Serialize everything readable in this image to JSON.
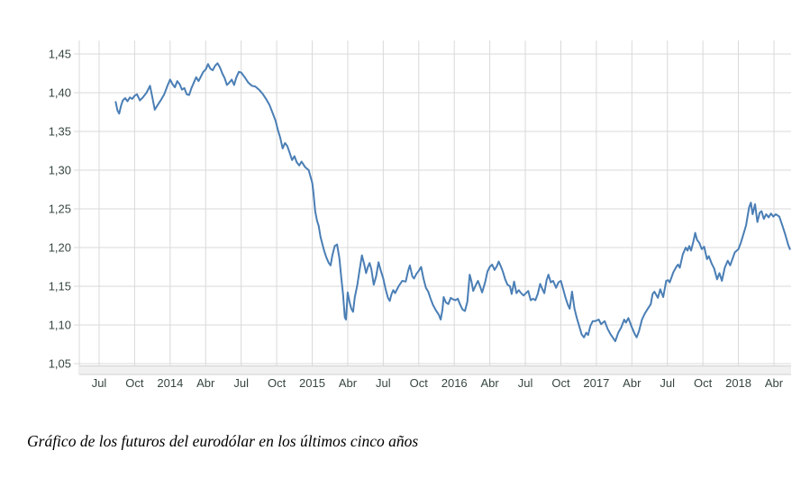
{
  "caption": "Gráfico de los futuros del eurodólar en los últimos cinco años",
  "chart_data": {
    "type": "line",
    "title": "",
    "series_name": "futuros-eurodolar",
    "legend": "none",
    "grid": "on",
    "colors": {
      "line": "#4a7eb5",
      "grid": "#d9d9d9",
      "axis_band_fill": "#f0f0f0",
      "axis_band_border": "#d2d2d2",
      "tick_label": "#36463e",
      "background": "#ffffff"
    },
    "ylim": [
      1.05,
      1.45
    ],
    "y_ticks": [
      {
        "value": 1.45,
        "label": "1,45"
      },
      {
        "value": 1.4,
        "label": "1,40"
      },
      {
        "value": 1.35,
        "label": "1,35"
      },
      {
        "value": 1.3,
        "label": "1,30"
      },
      {
        "value": 1.25,
        "label": "1,25"
      },
      {
        "value": 1.2,
        "label": "1,20"
      },
      {
        "value": 1.15,
        "label": "1,15"
      },
      {
        "value": 1.1,
        "label": "1,10"
      },
      {
        "value": 1.05,
        "label": "1,05"
      }
    ],
    "x_ticks": [
      {
        "t": 0,
        "label": "Jul"
      },
      {
        "t": 3,
        "label": "Oct"
      },
      {
        "t": 6,
        "label": "2014"
      },
      {
        "t": 9,
        "label": "Abr"
      },
      {
        "t": 12,
        "label": "Jul"
      },
      {
        "t": 15,
        "label": "Oct"
      },
      {
        "t": 18,
        "label": "2015"
      },
      {
        "t": 21,
        "label": "Abr"
      },
      {
        "t": 24,
        "label": "Jul"
      },
      {
        "t": 27,
        "label": "Oct"
      },
      {
        "t": 30,
        "label": "2016"
      },
      {
        "t": 33,
        "label": "Abr"
      },
      {
        "t": 36,
        "label": "Jul"
      },
      {
        "t": 39,
        "label": "Oct"
      },
      {
        "t": 42,
        "label": "2017"
      },
      {
        "t": 45,
        "label": "Abr"
      },
      {
        "t": 48,
        "label": "Jul"
      },
      {
        "t": 51,
        "label": "Oct"
      },
      {
        "t": 54,
        "label": "2018"
      },
      {
        "t": 57,
        "label": "Abr"
      }
    ],
    "x_unit": "months since Jul 2013",
    "points": [
      [
        1.4,
        1.388
      ],
      [
        1.55,
        1.377
      ],
      [
        1.7,
        1.373
      ],
      [
        1.85,
        1.383
      ],
      [
        2.0,
        1.39
      ],
      [
        2.2,
        1.393
      ],
      [
        2.4,
        1.389
      ],
      [
        2.6,
        1.394
      ],
      [
        2.8,
        1.392
      ],
      [
        3.0,
        1.396
      ],
      [
        3.2,
        1.398
      ],
      [
        3.45,
        1.39
      ],
      [
        3.7,
        1.394
      ],
      [
        4.0,
        1.4
      ],
      [
        4.3,
        1.409
      ],
      [
        4.5,
        1.394
      ],
      [
        4.7,
        1.378
      ],
      [
        4.9,
        1.383
      ],
      [
        5.2,
        1.39
      ],
      [
        5.5,
        1.398
      ],
      [
        5.8,
        1.41
      ],
      [
        6.0,
        1.417
      ],
      [
        6.2,
        1.411
      ],
      [
        6.4,
        1.407
      ],
      [
        6.6,
        1.415
      ],
      [
        6.8,
        1.411
      ],
      [
        7.0,
        1.404
      ],
      [
        7.2,
        1.406
      ],
      [
        7.4,
        1.398
      ],
      [
        7.6,
        1.397
      ],
      [
        7.8,
        1.406
      ],
      [
        8.0,
        1.413
      ],
      [
        8.2,
        1.42
      ],
      [
        8.4,
        1.415
      ],
      [
        8.6,
        1.421
      ],
      [
        8.8,
        1.427
      ],
      [
        9.0,
        1.43
      ],
      [
        9.2,
        1.437
      ],
      [
        9.4,
        1.431
      ],
      [
        9.6,
        1.429
      ],
      [
        9.8,
        1.435
      ],
      [
        10.0,
        1.438
      ],
      [
        10.2,
        1.433
      ],
      [
        10.4,
        1.425
      ],
      [
        10.6,
        1.419
      ],
      [
        10.8,
        1.41
      ],
      [
        11.0,
        1.413
      ],
      [
        11.2,
        1.417
      ],
      [
        11.4,
        1.41
      ],
      [
        11.6,
        1.42
      ],
      [
        11.8,
        1.427
      ],
      [
        12.0,
        1.426
      ],
      [
        12.3,
        1.42
      ],
      [
        12.6,
        1.413
      ],
      [
        12.9,
        1.409
      ],
      [
        13.2,
        1.408
      ],
      [
        13.5,
        1.404
      ],
      [
        13.8,
        1.399
      ],
      [
        14.1,
        1.392
      ],
      [
        14.4,
        1.384
      ],
      [
        14.7,
        1.372
      ],
      [
        14.9,
        1.364
      ],
      [
        15.1,
        1.352
      ],
      [
        15.3,
        1.342
      ],
      [
        15.5,
        1.328
      ],
      [
        15.7,
        1.335
      ],
      [
        15.9,
        1.331
      ],
      [
        16.1,
        1.322
      ],
      [
        16.3,
        1.313
      ],
      [
        16.5,
        1.318
      ],
      [
        16.7,
        1.31
      ],
      [
        16.9,
        1.306
      ],
      [
        17.1,
        1.311
      ],
      [
        17.4,
        1.304
      ],
      [
        17.7,
        1.3
      ],
      [
        18.0,
        1.284
      ],
      [
        18.1,
        1.272
      ],
      [
        18.25,
        1.247
      ],
      [
        18.4,
        1.235
      ],
      [
        18.55,
        1.228
      ],
      [
        18.7,
        1.214
      ],
      [
        18.85,
        1.205
      ],
      [
        19.0,
        1.196
      ],
      [
        19.2,
        1.187
      ],
      [
        19.4,
        1.18
      ],
      [
        19.55,
        1.177
      ],
      [
        19.7,
        1.19
      ],
      [
        19.9,
        1.202
      ],
      [
        20.1,
        1.204
      ],
      [
        20.3,
        1.186
      ],
      [
        20.45,
        1.162
      ],
      [
        20.6,
        1.14
      ],
      [
        20.75,
        1.11
      ],
      [
        20.85,
        1.107
      ],
      [
        21.0,
        1.142
      ],
      [
        21.15,
        1.13
      ],
      [
        21.3,
        1.121
      ],
      [
        21.45,
        1.117
      ],
      [
        21.6,
        1.136
      ],
      [
        21.8,
        1.151
      ],
      [
        22.0,
        1.171
      ],
      [
        22.2,
        1.19
      ],
      [
        22.4,
        1.178
      ],
      [
        22.55,
        1.167
      ],
      [
        22.7,
        1.175
      ],
      [
        22.85,
        1.18
      ],
      [
        23.0,
        1.172
      ],
      [
        23.2,
        1.152
      ],
      [
        23.4,
        1.163
      ],
      [
        23.6,
        1.181
      ],
      [
        23.8,
        1.17
      ],
      [
        24.0,
        1.16
      ],
      [
        24.2,
        1.146
      ],
      [
        24.4,
        1.135
      ],
      [
        24.55,
        1.131
      ],
      [
        24.7,
        1.14
      ],
      [
        24.85,
        1.145
      ],
      [
        25.0,
        1.141
      ],
      [
        25.3,
        1.15
      ],
      [
        25.6,
        1.157
      ],
      [
        25.9,
        1.156
      ],
      [
        26.1,
        1.17
      ],
      [
        26.25,
        1.177
      ],
      [
        26.45,
        1.163
      ],
      [
        26.6,
        1.16
      ],
      [
        26.8,
        1.166
      ],
      [
        27.0,
        1.17
      ],
      [
        27.2,
        1.175
      ],
      [
        27.4,
        1.16
      ],
      [
        27.6,
        1.148
      ],
      [
        27.8,
        1.143
      ],
      [
        28.0,
        1.134
      ],
      [
        28.2,
        1.126
      ],
      [
        28.45,
        1.119
      ],
      [
        28.7,
        1.113
      ],
      [
        28.85,
        1.107
      ],
      [
        29.0,
        1.12
      ],
      [
        29.1,
        1.136
      ],
      [
        29.3,
        1.129
      ],
      [
        29.5,
        1.127
      ],
      [
        29.7,
        1.135
      ],
      [
        29.9,
        1.133
      ],
      [
        30.1,
        1.132
      ],
      [
        30.3,
        1.134
      ],
      [
        30.5,
        1.126
      ],
      [
        30.7,
        1.12
      ],
      [
        30.9,
        1.118
      ],
      [
        31.1,
        1.13
      ],
      [
        31.3,
        1.165
      ],
      [
        31.45,
        1.156
      ],
      [
        31.6,
        1.144
      ],
      [
        31.8,
        1.151
      ],
      [
        32.0,
        1.157
      ],
      [
        32.2,
        1.149
      ],
      [
        32.35,
        1.142
      ],
      [
        32.6,
        1.155
      ],
      [
        32.8,
        1.169
      ],
      [
        33.0,
        1.175
      ],
      [
        33.2,
        1.178
      ],
      [
        33.4,
        1.171
      ],
      [
        33.6,
        1.176
      ],
      [
        33.75,
        1.182
      ],
      [
        33.95,
        1.175
      ],
      [
        34.1,
        1.169
      ],
      [
        34.3,
        1.159
      ],
      [
        34.5,
        1.152
      ],
      [
        34.7,
        1.15
      ],
      [
        34.85,
        1.14
      ],
      [
        35.05,
        1.156
      ],
      [
        35.25,
        1.141
      ],
      [
        35.45,
        1.145
      ],
      [
        35.65,
        1.141
      ],
      [
        35.85,
        1.138
      ],
      [
        36.05,
        1.141
      ],
      [
        36.25,
        1.144
      ],
      [
        36.45,
        1.132
      ],
      [
        36.65,
        1.134
      ],
      [
        36.85,
        1.132
      ],
      [
        37.05,
        1.14
      ],
      [
        37.25,
        1.153
      ],
      [
        37.45,
        1.146
      ],
      [
        37.6,
        1.141
      ],
      [
        37.8,
        1.158
      ],
      [
        37.95,
        1.165
      ],
      [
        38.15,
        1.155
      ],
      [
        38.35,
        1.157
      ],
      [
        38.6,
        1.148
      ],
      [
        38.8,
        1.155
      ],
      [
        39.0,
        1.157
      ],
      [
        39.2,
        1.146
      ],
      [
        39.4,
        1.135
      ],
      [
        39.6,
        1.126
      ],
      [
        39.75,
        1.121
      ],
      [
        39.95,
        1.143
      ],
      [
        40.15,
        1.121
      ],
      [
        40.35,
        1.109
      ],
      [
        40.55,
        1.099
      ],
      [
        40.75,
        1.088
      ],
      [
        40.95,
        1.084
      ],
      [
        41.15,
        1.09
      ],
      [
        41.3,
        1.087
      ],
      [
        41.5,
        1.099
      ],
      [
        41.7,
        1.105
      ],
      [
        41.9,
        1.105
      ],
      [
        42.2,
        1.107
      ],
      [
        42.4,
        1.101
      ],
      [
        42.7,
        1.105
      ],
      [
        42.95,
        1.095
      ],
      [
        43.2,
        1.088
      ],
      [
        43.6,
        1.079
      ],
      [
        43.85,
        1.09
      ],
      [
        44.1,
        1.097
      ],
      [
        44.35,
        1.107
      ],
      [
        44.5,
        1.103
      ],
      [
        44.7,
        1.109
      ],
      [
        45.0,
        1.097
      ],
      [
        45.25,
        1.088
      ],
      [
        45.4,
        1.084
      ],
      [
        45.6,
        1.092
      ],
      [
        45.85,
        1.107
      ],
      [
        46.1,
        1.115
      ],
      [
        46.35,
        1.121
      ],
      [
        46.6,
        1.127
      ],
      [
        46.75,
        1.14
      ],
      [
        46.9,
        1.143
      ],
      [
        47.2,
        1.135
      ],
      [
        47.4,
        1.146
      ],
      [
        47.65,
        1.136
      ],
      [
        47.9,
        1.157
      ],
      [
        48.05,
        1.158
      ],
      [
        48.2,
        1.155
      ],
      [
        48.5,
        1.168
      ],
      [
        48.75,
        1.175
      ],
      [
        48.9,
        1.178
      ],
      [
        49.05,
        1.174
      ],
      [
        49.3,
        1.191
      ],
      [
        49.55,
        1.2
      ],
      [
        49.7,
        1.196
      ],
      [
        49.85,
        1.202
      ],
      [
        50.0,
        1.196
      ],
      [
        50.2,
        1.208
      ],
      [
        50.35,
        1.219
      ],
      [
        50.5,
        1.21
      ],
      [
        50.7,
        1.206
      ],
      [
        50.9,
        1.198
      ],
      [
        51.1,
        1.201
      ],
      [
        51.35,
        1.185
      ],
      [
        51.5,
        1.189
      ],
      [
        51.75,
        1.179
      ],
      [
        51.95,
        1.173
      ],
      [
        52.2,
        1.159
      ],
      [
        52.4,
        1.167
      ],
      [
        52.6,
        1.157
      ],
      [
        52.85,
        1.174
      ],
      [
        53.1,
        1.183
      ],
      [
        53.3,
        1.177
      ],
      [
        53.7,
        1.194
      ],
      [
        54.0,
        1.198
      ],
      [
        54.2,
        1.206
      ],
      [
        54.5,
        1.221
      ],
      [
        54.65,
        1.229
      ],
      [
        54.9,
        1.252
      ],
      [
        55.05,
        1.258
      ],
      [
        55.2,
        1.243
      ],
      [
        55.4,
        1.256
      ],
      [
        55.6,
        1.233
      ],
      [
        55.8,
        1.245
      ],
      [
        55.95,
        1.247
      ],
      [
        56.15,
        1.237
      ],
      [
        56.35,
        1.243
      ],
      [
        56.55,
        1.239
      ],
      [
        56.75,
        1.244
      ],
      [
        56.95,
        1.24
      ],
      [
        57.15,
        1.243
      ],
      [
        57.45,
        1.24
      ],
      [
        57.7,
        1.229
      ],
      [
        57.95,
        1.217
      ],
      [
        58.2,
        1.204
      ],
      [
        58.35,
        1.198
      ]
    ]
  }
}
